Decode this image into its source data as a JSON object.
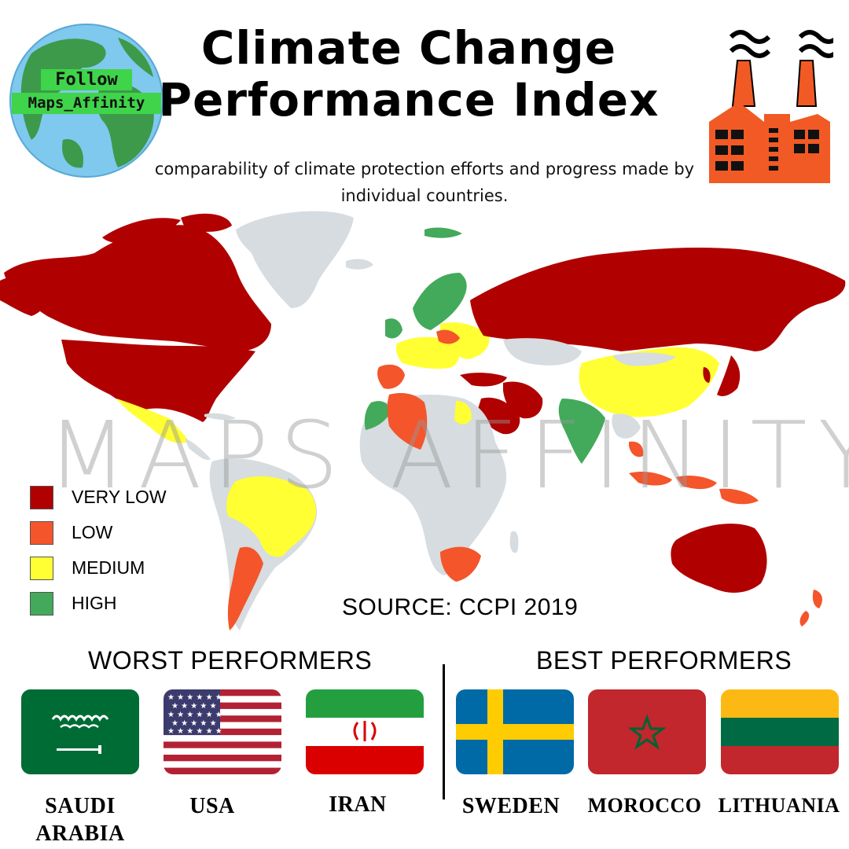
{
  "badge": {
    "line1": "Follow",
    "line2": "Maps_Affinity"
  },
  "title": {
    "line1": "Climate Change",
    "line2": "Performance Index"
  },
  "subtitle": {
    "line1": "comparability of climate protection efforts and progress made by",
    "line2": "individual countries."
  },
  "watermark": "MAPS AFFINITY",
  "legend": [
    {
      "label": "VERY LOW",
      "color": "#b00000"
    },
    {
      "label": "LOW",
      "color": "#f4552b"
    },
    {
      "label": "MEDIUM",
      "color": "#ffff33"
    },
    {
      "label": "HIGH",
      "color": "#43a95b"
    }
  ],
  "colors": {
    "no_data": "#d6dcdf",
    "very_low": "#b00000",
    "low": "#f4552b",
    "medium": "#ffff33",
    "high": "#43a95b",
    "factory": "#f15a24"
  },
  "source": "SOURCE:  CCPI 2019",
  "worst": {
    "title": "WORST PERFORMERS",
    "countries": [
      {
        "name_line1": "SAUDI",
        "name_line2": "ARABIA",
        "flag": "saudi-arabia"
      },
      {
        "name_line1": "USA",
        "name_line2": "",
        "flag": "usa"
      },
      {
        "name_line1": "IRAN",
        "name_line2": "",
        "flag": "iran"
      }
    ]
  },
  "best": {
    "title": "BEST PERFORMERS",
    "countries": [
      {
        "name_line1": "SWEDEN",
        "flag": "sweden"
      },
      {
        "name_line1": "MOROCCO",
        "flag": "morocco"
      },
      {
        "name_line1": "LITHUANIA",
        "flag": "lithuania"
      }
    ]
  }
}
